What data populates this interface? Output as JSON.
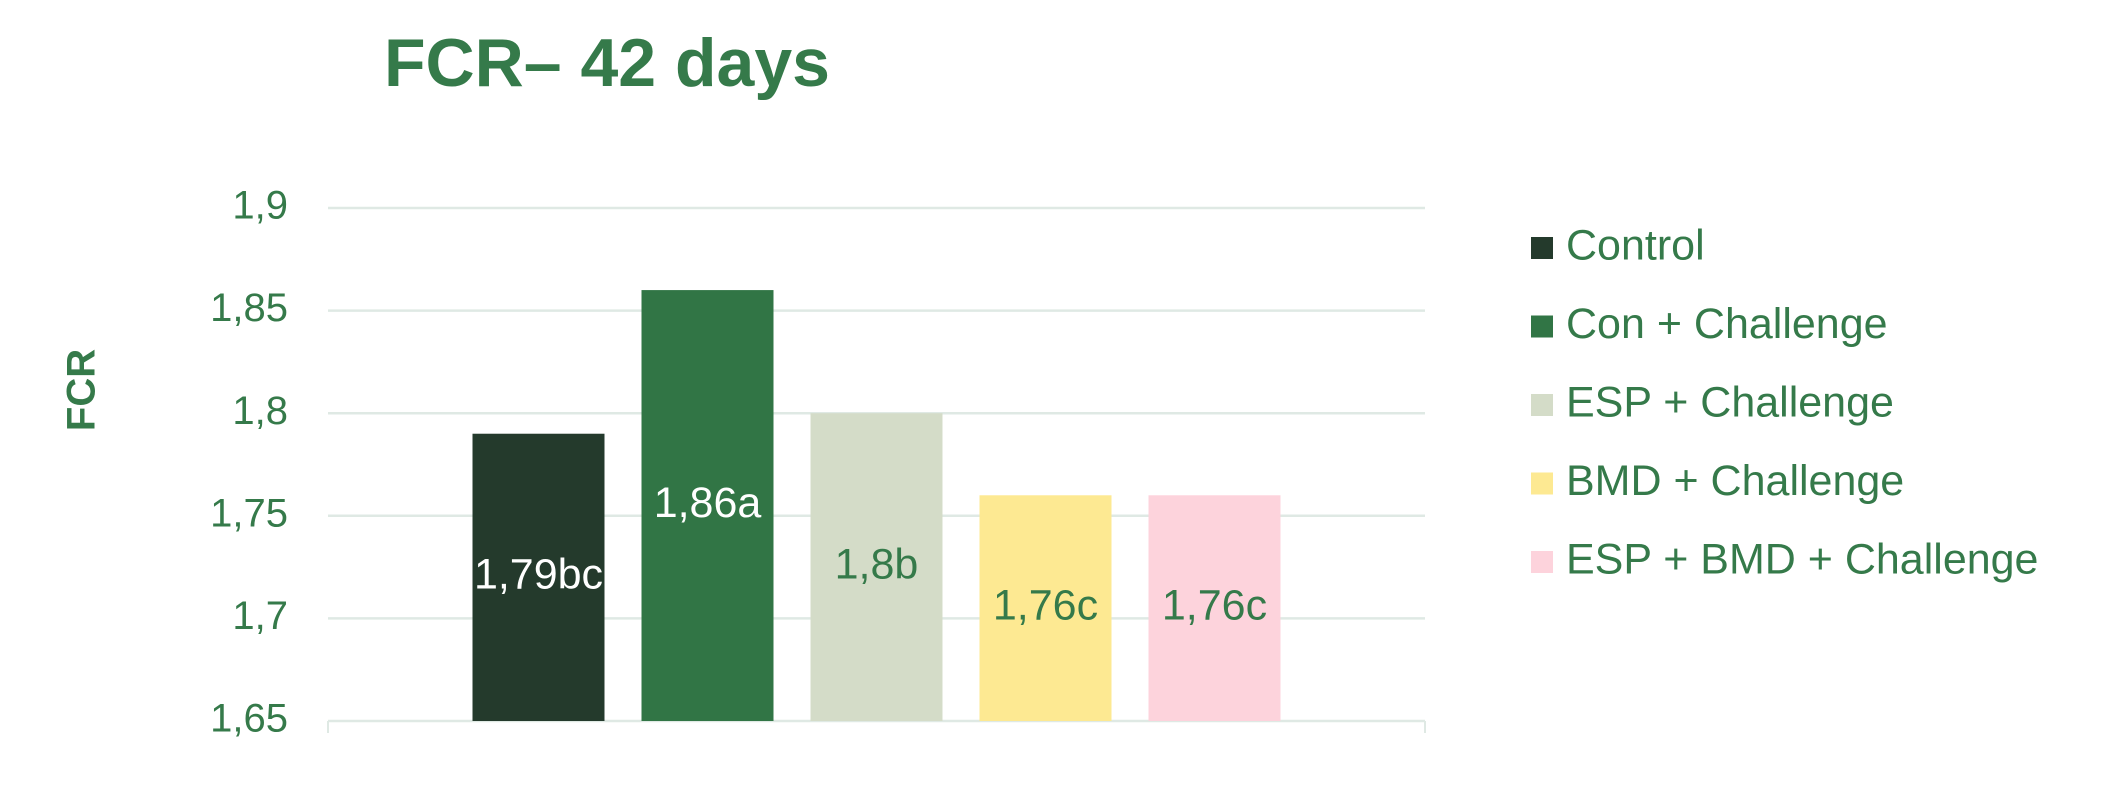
{
  "chart_data": {
    "type": "bar",
    "title": "FCR– 42 days",
    "y_label": "FCR",
    "categories": [
      null
    ],
    "series": [
      {
        "name": "Control",
        "color": "#243a2c",
        "values": [
          1.79
        ],
        "value_labels": [
          "1,79bc"
        ]
      },
      {
        "name": "Con + Challenge",
        "color": "#317545",
        "values": [
          1.86
        ],
        "value_labels": [
          "1,86a"
        ]
      },
      {
        "name": "ESP + Challenge",
        "color": "#d4dcc8",
        "values": [
          1.8
        ],
        "value_labels": [
          "1,8b"
        ]
      },
      {
        "name": "BMD + Challenge",
        "color": "#fde992",
        "values": [
          1.76
        ],
        "value_labels": [
          "1,76c"
        ]
      },
      {
        "name": "ESP + BMD + Challenge",
        "color": "#fdd3dc",
        "values": [
          1.76
        ],
        "value_labels": [
          "1,76c"
        ]
      }
    ],
    "ylim": [
      1.65,
      1.9
    ],
    "yticks": [
      {
        "value": 1.65,
        "label": "1,65"
      },
      {
        "value": 1.7,
        "label": "1,7"
      },
      {
        "value": 1.75,
        "label": "1,75"
      },
      {
        "value": 1.8,
        "label": "1,8"
      },
      {
        "value": 1.85,
        "label": "1,85"
      },
      {
        "value": 1.9,
        "label": "1,9"
      }
    ],
    "grid": true,
    "legend": "right"
  }
}
